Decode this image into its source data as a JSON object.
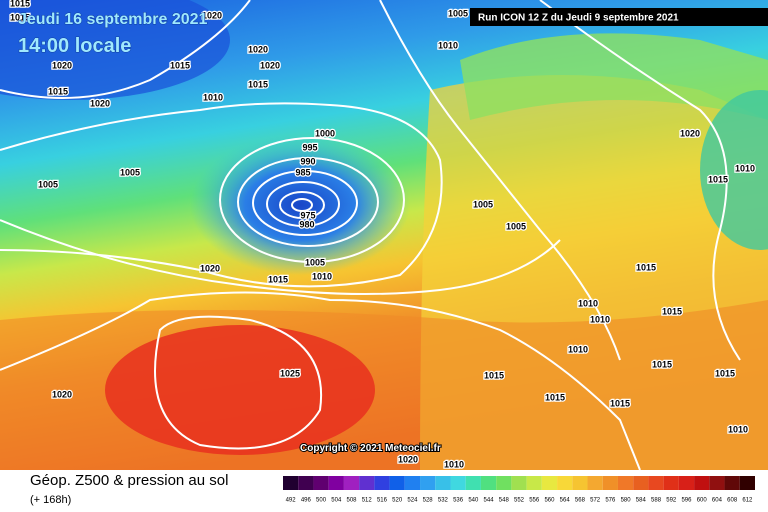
{
  "header": {
    "date": "Jeudi 16 septembre 2021",
    "time": "14:00 locale",
    "run": "Run ICON 12 Z du Jeudi 9 septembre 2021"
  },
  "map": {
    "isobar_labels": [
      "1015",
      "1015",
      "1020",
      "1020",
      "1020",
      "1015",
      "1020",
      "1015",
      "1020",
      "1010",
      "1015",
      "1005",
      "1010",
      "1000",
      "995",
      "990",
      "985",
      "975",
      "980",
      "1005",
      "1005",
      "1005",
      "1005",
      "1020",
      "1010",
      "1015",
      "1020",
      "1015",
      "1005",
      "1010",
      "1015",
      "1020",
      "1025",
      "1010",
      "1010",
      "1015",
      "1010",
      "1015",
      "1015",
      "1015",
      "1015",
      "1015",
      "1010",
      "1020",
      "1010"
    ],
    "copyright": "Copyright © 2021 Meteociel.fr"
  },
  "legend": {
    "title": "Géop. Z500 & pression au sol",
    "subtitle": "(+ 168h)",
    "scale": [
      "492",
      "496",
      "500",
      "504",
      "508",
      "512",
      "516",
      "520",
      "524",
      "528",
      "532",
      "536",
      "540",
      "544",
      "548",
      "552",
      "556",
      "560",
      "564",
      "568",
      "572",
      "576",
      "580",
      "584",
      "588",
      "592",
      "596",
      "600",
      "604",
      "608",
      "612"
    ]
  }
}
